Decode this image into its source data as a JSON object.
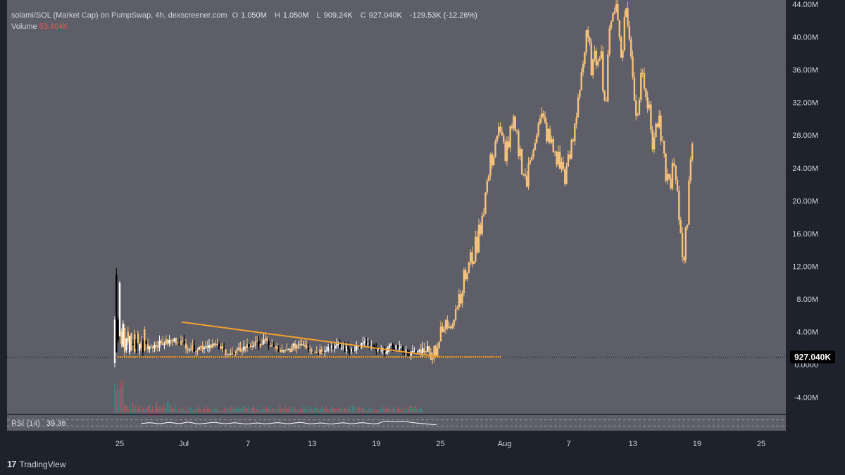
{
  "header": {
    "symbol": "solami/SOL (Market Cap) on PumpSwap, 4h, dexscreener.com",
    "o_key": "O",
    "o_val": "1.050M",
    "h_key": "H",
    "h_val": "1.050M",
    "l_key": "L",
    "l_val": "909.24K",
    "c_key": "C",
    "c_val": "927.040K",
    "change": "-129.53K (-12.26%)",
    "volume_label": "Volume",
    "volume_value": "53.404K"
  },
  "rsi": {
    "label": "RSI (14)",
    "value": "39.36",
    "series": [
      46,
      48,
      52,
      50,
      47,
      45,
      49,
      53,
      51,
      48,
      46,
      50,
      55,
      52,
      47,
      44,
      46,
      49,
      52,
      54,
      50,
      47,
      45,
      48,
      51,
      49,
      46,
      43,
      45,
      48,
      50,
      47,
      44,
      46,
      49,
      52,
      50,
      47,
      45,
      48,
      51,
      53,
      50,
      46,
      44,
      47,
      50,
      48,
      45,
      43,
      46,
      49,
      51,
      48,
      45,
      47,
      50,
      52,
      49,
      46,
      44,
      47,
      56,
      62,
      60,
      57,
      58,
      61,
      59,
      55,
      52,
      49,
      47,
      45,
      42,
      40,
      39
    ]
  },
  "price_label": "927.040K",
  "branding": {
    "name": "TradingView"
  },
  "colors": {
    "background": "#1e222d",
    "chart_bg": "#5d5e68",
    "candle": "#f7c27c",
    "line": "#f0a030",
    "dark_candle": "#000000",
    "up_candle": "#ffffff"
  },
  "chart_data": {
    "type": "candlestick",
    "title": "solami/SOL (Market Cap) on PumpSwap, 4h, dexscreener.com",
    "x_ticks": [
      "25",
      "Jul",
      "7",
      "13",
      "19",
      "25",
      "Aug",
      "7",
      "13",
      "19",
      "25"
    ],
    "y_ticks": [
      "44.00M",
      "40.00M",
      "36.00M",
      "32.00M",
      "28.00M",
      "24.00M",
      "20.00M",
      "16.00M",
      "12.00M",
      "8.00M",
      "4.00M",
      "0.0000",
      "-4.00M"
    ],
    "ylim": [
      -6000000,
      44000000
    ],
    "last_price": 927040,
    "candles_lead": [
      [
        0.2,
        5.5
      ],
      [
        1.5,
        11.0
      ],
      [
        5.5,
        3.0
      ],
      [
        3.5,
        10.0
      ],
      [
        4.0,
        2.5
      ],
      [
        2.2,
        5.0
      ],
      [
        1.5,
        4.5
      ],
      [
        1.8,
        3.2
      ],
      [
        2.8,
        4.0
      ],
      [
        1.5,
        3.5
      ],
      [
        1.8,
        3.8
      ],
      [
        2.5,
        2.4
      ],
      [
        1.6,
        3.7
      ],
      [
        3.1,
        1.9
      ],
      [
        2.6,
        3.8
      ],
      [
        1.7,
        2.5
      ],
      [
        2.0,
        2.8
      ],
      [
        2.9,
        1.5
      ],
      [
        1.7,
        4.3
      ],
      [
        2.9,
        2.5
      ]
    ],
    "waypoints_mid": [
      [
        0.0,
        2.2
      ],
      [
        0.1,
        3.0
      ],
      [
        0.16,
        1.9
      ],
      [
        0.23,
        2.5
      ],
      [
        0.3,
        1.2
      ],
      [
        0.35,
        2.2
      ],
      [
        0.42,
        2.8
      ],
      [
        0.48,
        1.4
      ],
      [
        0.55,
        2.7
      ],
      [
        0.6,
        1.5
      ],
      [
        0.66,
        2.3
      ],
      [
        0.72,
        1.8
      ],
      [
        0.78,
        2.6
      ],
      [
        0.83,
        1.5
      ],
      [
        0.88,
        2.3
      ],
      [
        0.94,
        1.3
      ],
      [
        1.0,
        2.0
      ]
    ],
    "waypoints_rally": [
      [
        0.0,
        1.0
      ],
      [
        0.03,
        2.5
      ],
      [
        0.06,
        4.5
      ],
      [
        0.09,
        6.0
      ],
      [
        0.12,
        9.0
      ],
      [
        0.15,
        12.0
      ],
      [
        0.18,
        14.5
      ],
      [
        0.21,
        20.0
      ],
      [
        0.23,
        24.0
      ],
      [
        0.26,
        28.5
      ],
      [
        0.29,
        26.0
      ],
      [
        0.32,
        29.0
      ],
      [
        0.35,
        25.0
      ],
      [
        0.37,
        22.0
      ],
      [
        0.4,
        28.0
      ],
      [
        0.43,
        30.0
      ],
      [
        0.46,
        27.0
      ],
      [
        0.49,
        25.0
      ],
      [
        0.52,
        23.0
      ],
      [
        0.55,
        28.0
      ],
      [
        0.57,
        34.0
      ],
      [
        0.6,
        40.0
      ],
      [
        0.62,
        36.0
      ],
      [
        0.65,
        39.0
      ],
      [
        0.67,
        31.0
      ],
      [
        0.69,
        43.0
      ],
      [
        0.71,
        44.0
      ],
      [
        0.73,
        38.0
      ],
      [
        0.75,
        44.0
      ],
      [
        0.77,
        36.0
      ],
      [
        0.79,
        30.0
      ],
      [
        0.81,
        37.0
      ],
      [
        0.83,
        32.0
      ],
      [
        0.85,
        27.0
      ],
      [
        0.87,
        30.0
      ],
      [
        0.89,
        25.0
      ],
      [
        0.91,
        22.0
      ],
      [
        0.93,
        24.0
      ],
      [
        0.95,
        18.0
      ],
      [
        0.965,
        13.0
      ],
      [
        0.98,
        17.0
      ],
      [
        0.99,
        25.0
      ],
      [
        1.0,
        27.5
      ]
    ],
    "trendline": {
      "start": [
        0.35,
        5.2
      ],
      "end": [
        0.69,
        0.9
      ]
    },
    "support_line": {
      "y": 0.93
    },
    "rsi_pane": {
      "min": 0,
      "max": 100,
      "bands": [
        30,
        70
      ]
    }
  }
}
